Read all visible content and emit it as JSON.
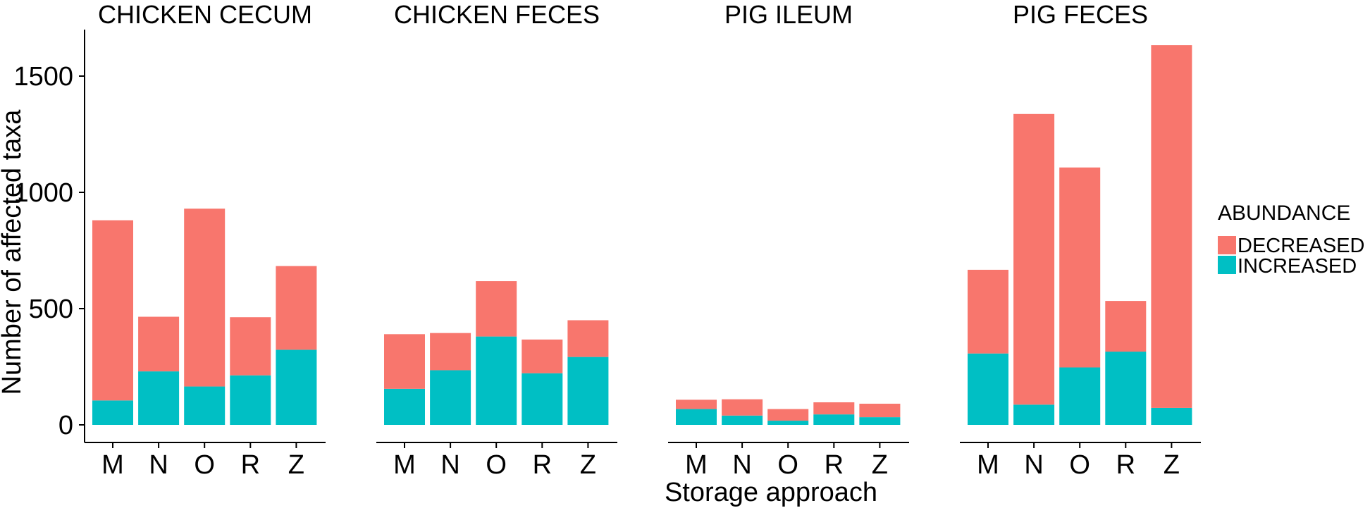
{
  "chart_data": {
    "type": "bar",
    "stacked": true,
    "facets": [
      "CHICKEN CECUM",
      "CHICKEN FECES",
      "PIG ILEUM",
      "PIG FECES"
    ],
    "categories": [
      "M",
      "N",
      "O",
      "R",
      "Z"
    ],
    "xlabel": "Storage approach",
    "ylabel": "Number of affected taxa",
    "ylim": [
      0,
      1700
    ],
    "yticks": [
      0,
      500,
      1000,
      1500
    ],
    "legend": {
      "title": "ABUNDANCE",
      "position": "right"
    },
    "series": [
      {
        "name": "DECREASED",
        "color": "#F8766D",
        "values": [
          [
            775,
            235,
            765,
            250,
            360
          ],
          [
            235,
            160,
            238,
            145,
            158
          ],
          [
            40,
            70,
            50,
            52,
            58
          ],
          [
            360,
            1250,
            860,
            218,
            1560
          ]
        ]
      },
      {
        "name": "INCREASED",
        "color": "#00BFC4",
        "values": [
          [
            105,
            230,
            165,
            213,
            323
          ],
          [
            155,
            235,
            380,
            222,
            292
          ],
          [
            68,
            40,
            18,
            45,
            33
          ],
          [
            307,
            87,
            247,
            315,
            73
          ]
        ]
      }
    ],
    "grid": false
  }
}
